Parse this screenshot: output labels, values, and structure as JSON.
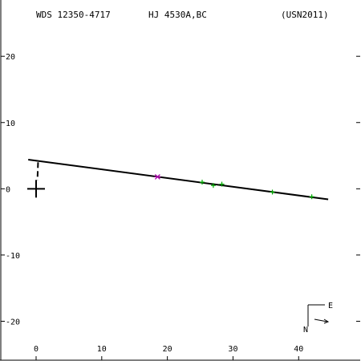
{
  "header": {
    "wds_id": "WDS 12350-4717",
    "discoverer": "HJ 4530A,BC",
    "reference": "(USN2011)"
  },
  "compass": {
    "north_label": "N",
    "east_label": "E"
  },
  "chart_data": {
    "type": "scatter",
    "title": "",
    "xlabel": "",
    "ylabel": "",
    "xlim": [
      -5.5,
      49.5
    ],
    "ylim": [
      -26,
      28.5
    ],
    "x_ticks": [
      0,
      10,
      20,
      30,
      40
    ],
    "y_ticks": [
      20,
      10,
      0,
      -10,
      -20
    ],
    "x_tick_labels": [
      "0",
      "10",
      "20",
      "30",
      "40"
    ],
    "y_tick_labels": [
      "20",
      "10",
      "0",
      "-10",
      "-20"
    ],
    "colors": {
      "axes": "#000000",
      "observations": "#00aa00",
      "highlight": "#aa00aa",
      "orbit_line": "#000000"
    },
    "primary_marker": {
      "x": 0,
      "y": 0
    },
    "fitted_line": [
      {
        "x": -1.2,
        "y": 4.4
      },
      {
        "x": 44.5,
        "y": -1.6
      }
    ],
    "residual_segment": [
      {
        "x": 0.3,
        "y": 4.0
      },
      {
        "x": 0.2,
        "y": 1.3
      }
    ],
    "observations": [
      {
        "x": 18.5,
        "y": 1.8,
        "kind": "highlight"
      },
      {
        "x": 25.3,
        "y": 1.0,
        "kind": "normal"
      },
      {
        "x": 27.0,
        "y": 0.5,
        "kind": "normal"
      },
      {
        "x": 28.3,
        "y": 0.7,
        "kind": "normal"
      },
      {
        "x": 36.0,
        "y": -0.5,
        "kind": "normal"
      },
      {
        "x": 42.0,
        "y": -1.2,
        "kind": "normal"
      }
    ]
  }
}
